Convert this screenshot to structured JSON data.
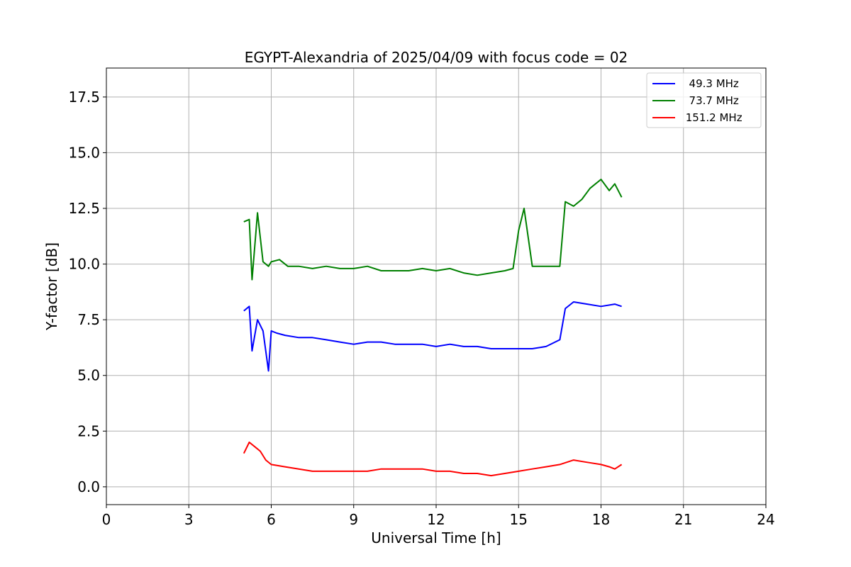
{
  "chart_data": {
    "type": "line",
    "title": "EGYPT-Alexandria of 2025/04/09 with focus code = 02",
    "xlabel": "Universal Time [h]",
    "ylabel": "Y-factor [dB]",
    "xlim": [
      0,
      24
    ],
    "ylim": [
      -0.8,
      18.8
    ],
    "xticks": [
      0,
      3,
      6,
      9,
      12,
      15,
      18,
      21,
      24
    ],
    "xtick_labels": [
      "0",
      "3",
      "6",
      "9",
      "12",
      "15",
      "18",
      "21",
      "24"
    ],
    "yticks": [
      0.0,
      2.5,
      5.0,
      7.5,
      10.0,
      12.5,
      15.0,
      17.5
    ],
    "ytick_labels": [
      "0.0",
      "2.5",
      "5.0",
      "7.5",
      "10.0",
      "12.5",
      "15.0",
      "17.5"
    ],
    "grid": true,
    "legend_position": "top-right",
    "series": [
      {
        "name": "  49.3 MHz",
        "color": "#0000ff",
        "x": [
          5.0,
          5.2,
          5.3,
          5.5,
          5.7,
          5.9,
          6.0,
          6.2,
          6.5,
          7.0,
          7.5,
          8.0,
          8.5,
          9.0,
          9.5,
          10.0,
          10.5,
          11.0,
          11.5,
          12.0,
          12.5,
          13.0,
          13.5,
          14.0,
          14.5,
          15.0,
          15.5,
          16.0,
          16.5,
          16.7,
          17.0,
          17.5,
          18.0,
          18.5,
          18.75
        ],
        "y": [
          7.9,
          8.1,
          6.1,
          7.5,
          7.0,
          5.2,
          7.0,
          6.9,
          6.8,
          6.7,
          6.7,
          6.6,
          6.5,
          6.4,
          6.5,
          6.5,
          6.4,
          6.4,
          6.4,
          6.3,
          6.4,
          6.3,
          6.3,
          6.2,
          6.2,
          6.2,
          6.2,
          6.3,
          6.6,
          8.0,
          8.3,
          8.2,
          8.1,
          8.2,
          8.1
        ]
      },
      {
        "name": "  73.7 MHz",
        "color": "#008000",
        "x": [
          5.0,
          5.2,
          5.3,
          5.5,
          5.7,
          5.9,
          6.0,
          6.3,
          6.6,
          7.0,
          7.5,
          8.0,
          8.5,
          9.0,
          9.5,
          10.0,
          10.5,
          11.0,
          11.5,
          12.0,
          12.5,
          13.0,
          13.5,
          14.0,
          14.5,
          14.8,
          15.0,
          15.2,
          15.5,
          16.0,
          16.5,
          16.7,
          17.0,
          17.3,
          17.6,
          18.0,
          18.3,
          18.5,
          18.75
        ],
        "y": [
          11.9,
          12.0,
          9.3,
          12.3,
          10.1,
          9.9,
          10.1,
          10.2,
          9.9,
          9.9,
          9.8,
          9.9,
          9.8,
          9.8,
          9.9,
          9.7,
          9.7,
          9.7,
          9.8,
          9.7,
          9.8,
          9.6,
          9.5,
          9.6,
          9.7,
          9.8,
          11.5,
          12.5,
          9.9,
          9.9,
          9.9,
          12.8,
          12.6,
          12.9,
          13.4,
          13.8,
          13.3,
          13.6,
          13.0
        ]
      },
      {
        "name": " 151.2 MHz",
        "color": "#ff0000",
        "x": [
          5.0,
          5.2,
          5.4,
          5.6,
          5.8,
          6.0,
          6.5,
          7.0,
          7.5,
          8.0,
          8.5,
          9.0,
          9.5,
          10.0,
          10.5,
          11.0,
          11.5,
          12.0,
          12.5,
          13.0,
          13.5,
          14.0,
          14.5,
          15.0,
          15.5,
          16.0,
          16.5,
          17.0,
          17.5,
          18.0,
          18.3,
          18.5,
          18.75
        ],
        "y": [
          1.5,
          2.0,
          1.8,
          1.6,
          1.2,
          1.0,
          0.9,
          0.8,
          0.7,
          0.7,
          0.7,
          0.7,
          0.7,
          0.8,
          0.8,
          0.8,
          0.8,
          0.7,
          0.7,
          0.6,
          0.6,
          0.5,
          0.6,
          0.7,
          0.8,
          0.9,
          1.0,
          1.2,
          1.1,
          1.0,
          0.9,
          0.8,
          1.0
        ]
      }
    ]
  }
}
